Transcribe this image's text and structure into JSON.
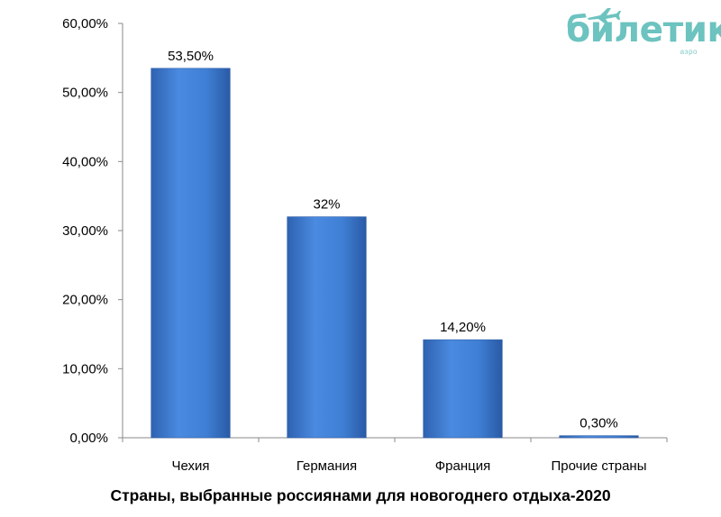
{
  "chart_data": {
    "type": "bar",
    "title": "Страны, выбранные россиянами для новогоднего отдыха-2020",
    "xlabel": "",
    "ylabel": "",
    "categories": [
      "Чехия",
      "Германия",
      "Франция",
      "Прочие страны"
    ],
    "values": [
      53.5,
      32,
      14.2,
      0.3
    ],
    "data_labels": [
      "53,50%",
      "32%",
      "14,20%",
      "0,30%"
    ],
    "ylim": [
      0,
      60
    ],
    "yticks": [
      0,
      10,
      20,
      30,
      40,
      50,
      60
    ],
    "ytick_labels": [
      "0,00%",
      "10,00%",
      "20,00%",
      "30,00%",
      "40,00%",
      "50,00%",
      "60,00%"
    ],
    "grid": false,
    "legend": "none",
    "bar_color": "#3f7fd4"
  },
  "logo": {
    "wordmark": "билетик",
    "subtitle": "аэро",
    "color": "#6cc3bf"
  }
}
